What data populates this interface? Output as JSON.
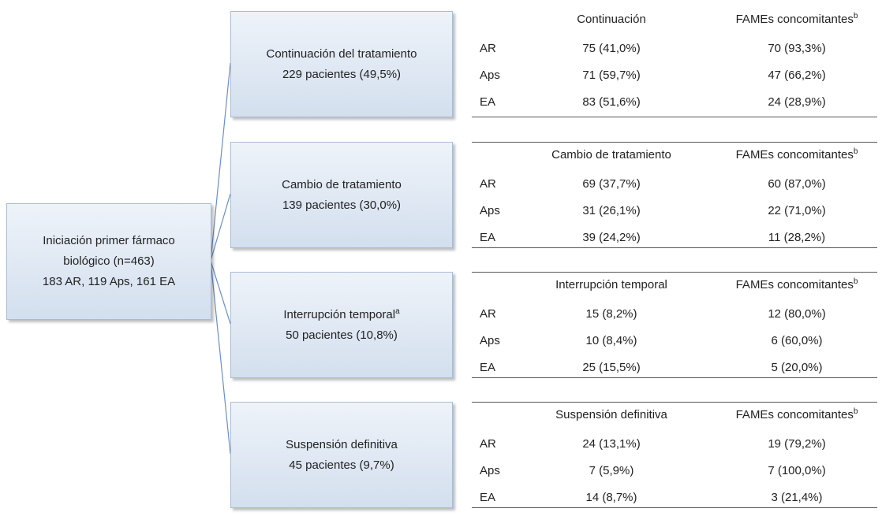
{
  "root": {
    "lines": [
      "Iniciación primer fármaco",
      "biológico (n=463)",
      "183 AR, 119 Aps, 161 EA"
    ]
  },
  "groups": [
    {
      "title": "Continuación del tratamiento",
      "count": "229 pacientes (49,5%)",
      "table": {
        "col1": "Continuación",
        "col2": "FAMEs concomitantes",
        "col2_sup": "b",
        "rows": [
          [
            "AR",
            "75 (41,0%)",
            "70 (93,3%)"
          ],
          [
            "Aps",
            "71 (59,7%)",
            "47 (66,2%)"
          ],
          [
            "EA",
            "83 (51,6%)",
            "24 (28,9%)"
          ]
        ]
      }
    },
    {
      "title": "Cambio de tratamiento",
      "count": "139 pacientes (30,0%)",
      "table": {
        "col1": "Cambio de tratamiento",
        "col2": "FAMEs concomitantes",
        "col2_sup": "b",
        "rows": [
          [
            "AR",
            "69 (37,7%)",
            "60 (87,0%)"
          ],
          [
            "Aps",
            "31 (26,1%)",
            "22 (71,0%)"
          ],
          [
            "EA",
            "39 (24,2%)",
            "11 (28,2%)"
          ]
        ]
      }
    },
    {
      "title": "Interrupción temporal",
      "title_sup": "a",
      "count": "50 pacientes (10,8%)",
      "table": {
        "col1": "Interrupción temporal",
        "col2": "FAMEs concomitantes",
        "col2_sup": "b",
        "rows": [
          [
            "AR",
            "15 (8,2%)",
            "12 (80,0%)"
          ],
          [
            "Aps",
            "10 (8,4%)",
            "6 (60,0%)"
          ],
          [
            "EA",
            "25 (15,5%)",
            "5 (20,0%)"
          ]
        ]
      }
    },
    {
      "title": "Suspensión definitiva",
      "count": "45 pacientes (9,7%)",
      "table": {
        "col1": "Suspensión definitiva",
        "col2": "FAMEs concomitantes",
        "col2_sup": "b",
        "rows": [
          [
            "AR",
            "24 (13,1%)",
            "19 (79,2%)"
          ],
          [
            "Aps",
            "7 (5,9%)",
            "7 (100,0%)"
          ],
          [
            "EA",
            "14 (8,7%)",
            "3 (21,4%)"
          ]
        ]
      }
    }
  ]
}
